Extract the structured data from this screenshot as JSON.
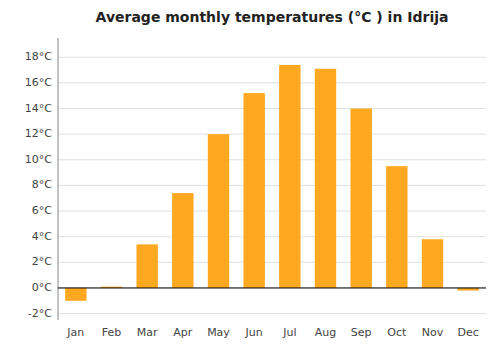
{
  "chart_data": {
    "type": "bar",
    "title": "Average monthly temperatures (°C ) in Idrija",
    "categories": [
      "Jan",
      "Feb",
      "Mar",
      "Apr",
      "May",
      "Jun",
      "Jul",
      "Aug",
      "Sep",
      "Oct",
      "Nov",
      "Dec"
    ],
    "values": [
      -1.0,
      0.1,
      3.4,
      7.4,
      12.0,
      15.2,
      17.4,
      17.1,
      14.0,
      9.5,
      3.8,
      -0.2
    ],
    "color": "#FFA820",
    "ylim": [
      -2.5,
      19.5
    ],
    "yticks": [
      {
        "value": -2,
        "label": "-2°C"
      },
      {
        "value": 0,
        "label": "0°C"
      },
      {
        "value": 2,
        "label": "2°C"
      },
      {
        "value": 4,
        "label": "4°C"
      },
      {
        "value": 6,
        "label": "6°C"
      },
      {
        "value": 8,
        "label": "8°C"
      },
      {
        "value": 10,
        "label": "10°C"
      },
      {
        "value": 12,
        "label": "12°C"
      },
      {
        "value": 14,
        "label": "14°C"
      },
      {
        "value": 16,
        "label": "16°C"
      },
      {
        "value": 18,
        "label": "18°C"
      }
    ],
    "grid": true
  }
}
